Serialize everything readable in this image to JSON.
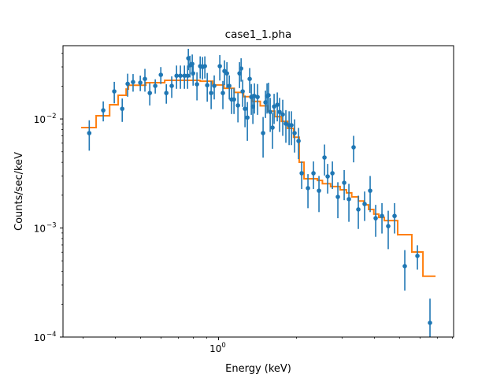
{
  "chart_data": {
    "type": "scatter",
    "title": "case1_1.pha",
    "xlabel": "Energy (keV)",
    "ylabel": "Counts/sec/keV",
    "xscale": "log",
    "yscale": "log",
    "xlim": [
      0.251,
      8.09
    ],
    "ylim": [
      0.0001,
      0.047
    ],
    "grid": false,
    "colors": {
      "data": "#1f77b4",
      "model": "#ff7f0e"
    },
    "x_ticks": [
      {
        "value": 1,
        "base": "10",
        "exp": "0"
      }
    ],
    "y_ticks": [
      {
        "value": 0.01,
        "base": "10",
        "exp": "−2"
      },
      {
        "value": 0.001,
        "base": "10",
        "exp": "−3"
      },
      {
        "value": 0.0001,
        "base": "10",
        "exp": "−4"
      }
    ],
    "data_series": {
      "columns": [
        "energy_keV",
        "counts_per_sec_per_keV",
        "yerr"
      ],
      "points": [
        [
          0.317,
          0.00742,
          0.0023
        ],
        [
          0.359,
          0.012,
          0.0025
        ],
        [
          0.396,
          0.0179,
          0.004
        ],
        [
          0.425,
          0.0124,
          0.003
        ],
        [
          0.446,
          0.021,
          0.005
        ],
        [
          0.468,
          0.0218,
          0.004
        ],
        [
          0.499,
          0.0215,
          0.0035
        ],
        [
          0.52,
          0.0233,
          0.0055
        ],
        [
          0.543,
          0.0173,
          0.004
        ],
        [
          0.57,
          0.0201,
          0.003
        ],
        [
          0.599,
          0.0254,
          0.0045
        ],
        [
          0.629,
          0.0173,
          0.0035
        ],
        [
          0.66,
          0.0201,
          0.0045
        ],
        [
          0.689,
          0.0249,
          0.006
        ],
        [
          0.713,
          0.0249,
          0.006
        ],
        [
          0.739,
          0.0249,
          0.006
        ],
        [
          0.76,
          0.0249,
          0.006
        ],
        [
          0.765,
          0.036,
          0.008
        ],
        [
          0.776,
          0.031,
          0.007
        ],
        [
          0.792,
          0.032,
          0.007
        ],
        [
          0.798,
          0.0262,
          0.006
        ],
        [
          0.826,
          0.0208,
          0.006
        ],
        [
          0.85,
          0.0305,
          0.007
        ],
        [
          0.868,
          0.03,
          0.007
        ],
        [
          0.886,
          0.0305,
          0.007
        ],
        [
          0.905,
          0.0204,
          0.006
        ],
        [
          0.937,
          0.0173,
          0.005
        ],
        [
          0.963,
          0.0201,
          0.005
        ],
        [
          1.012,
          0.0305,
          0.008
        ],
        [
          1.04,
          0.0173,
          0.005
        ],
        [
          1.055,
          0.0275,
          0.007
        ],
        [
          1.078,
          0.0262,
          0.007
        ],
        [
          1.101,
          0.0201,
          0.005
        ],
        [
          1.124,
          0.0151,
          0.004
        ],
        [
          1.148,
          0.0151,
          0.004
        ],
        [
          1.189,
          0.0133,
          0.004
        ],
        [
          1.206,
          0.0262,
          0.007
        ],
        [
          1.223,
          0.029,
          0.007
        ],
        [
          1.24,
          0.0179,
          0.005
        ],
        [
          1.266,
          0.0124,
          0.004
        ],
        [
          1.293,
          0.0103,
          0.004
        ],
        [
          1.32,
          0.0233,
          0.006
        ],
        [
          1.339,
          0.0159,
          0.005
        ],
        [
          1.358,
          0.013,
          0.004
        ],
        [
          1.377,
          0.0162,
          0.005
        ],
        [
          1.416,
          0.0159,
          0.005
        ],
        [
          1.487,
          0.00742,
          0.003
        ],
        [
          1.519,
          0.0142,
          0.004
        ],
        [
          1.54,
          0.0162,
          0.005
        ],
        [
          1.561,
          0.0165,
          0.005
        ],
        [
          1.584,
          0.0116,
          0.004
        ],
        [
          1.617,
          0.00833,
          0.003
        ],
        [
          1.64,
          0.013,
          0.004
        ],
        [
          1.687,
          0.0135,
          0.004
        ],
        [
          1.722,
          0.0116,
          0.004
        ],
        [
          1.771,
          0.011,
          0.004
        ],
        [
          1.821,
          0.00905,
          0.003
        ],
        [
          1.874,
          0.00876,
          0.003
        ],
        [
          1.913,
          0.00876,
          0.003
        ],
        [
          1.967,
          0.00742,
          0.0025
        ],
        [
          2.038,
          0.00628,
          0.002
        ],
        [
          2.096,
          0.00318,
          0.0009
        ],
        [
          2.216,
          0.00232,
          0.0008
        ],
        [
          2.327,
          0.00318,
          0.0009
        ],
        [
          2.444,
          0.0022,
          0.0008
        ],
        [
          2.567,
          0.00443,
          0.0014
        ],
        [
          2.64,
          0.00297,
          0.0009
        ],
        [
          2.754,
          0.00318,
          0.0009
        ],
        [
          2.891,
          0.00193,
          0.0007
        ],
        [
          3.058,
          0.0026,
          0.0008
        ],
        [
          3.189,
          0.00184,
          0.0007
        ],
        [
          3.325,
          0.0055,
          0.0015
        ],
        [
          3.468,
          0.00148,
          0.0005
        ],
        [
          3.667,
          0.00166,
          0.0005
        ],
        [
          3.852,
          0.0022,
          0.0008
        ],
        [
          4.046,
          0.00123,
          0.0004
        ],
        [
          4.279,
          0.00129,
          0.0004
        ],
        [
          4.524,
          0.00104,
          0.0004
        ],
        [
          4.786,
          0.00129,
          0.0004
        ],
        [
          5.242,
          0.000447,
          0.00018
        ],
        [
          5.864,
          0.000555,
          0.00014
        ],
        [
          6.558,
          0.000135,
          9e-05
        ]
      ]
    },
    "model_series": {
      "type": "step",
      "bin_edges": [
        0.295,
        0.337,
        0.38,
        0.41,
        0.44,
        0.449,
        0.524,
        0.62,
        0.85,
        0.95,
        1.05,
        1.15,
        1.25,
        1.35,
        1.45,
        1.55,
        1.65,
        1.75,
        1.85,
        1.95,
        2.05,
        2.14,
        2.41,
        2.52,
        2.71,
        2.95,
        3.12,
        3.27,
        3.47,
        3.64,
        3.8,
        3.98,
        4.16,
        4.37,
        4.92,
        5.58,
        6.16,
        6.89
      ],
      "values": [
        0.00833,
        0.0107,
        0.0135,
        0.0165,
        0.0188,
        0.0204,
        0.0215,
        0.0226,
        0.0222,
        0.0205,
        0.0191,
        0.0175,
        0.016,
        0.0145,
        0.0132,
        0.0118,
        0.0105,
        0.0095,
        0.0082,
        0.0068,
        0.00401,
        0.00283,
        0.00273,
        0.00255,
        0.0024,
        0.00224,
        0.0021,
        0.00193,
        0.00177,
        0.00163,
        0.00148,
        0.00134,
        0.00125,
        0.00117,
        0.000868,
        0.000603,
        0.000361
      ]
    }
  }
}
